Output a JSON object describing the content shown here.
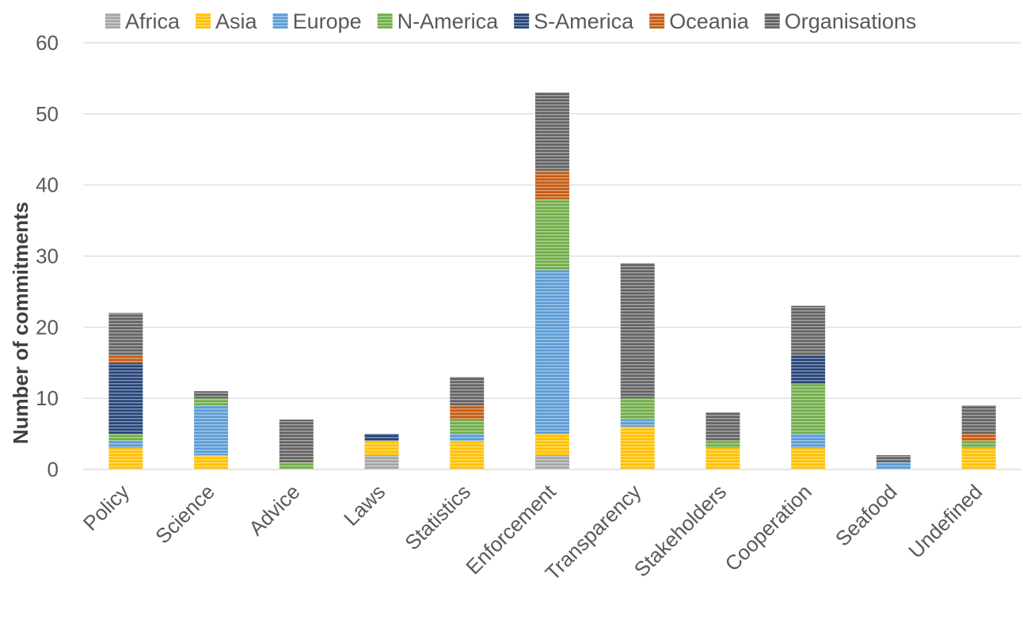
{
  "chart_data": {
    "type": "bar",
    "stacked": true,
    "ylabel": "Number of commitments",
    "xlabel": "",
    "ylim": [
      0,
      60
    ],
    "yticks": [
      0,
      10,
      20,
      30,
      40,
      50,
      60
    ],
    "grid": true,
    "legend_position": "top",
    "categories": [
      "Policy",
      "Science",
      "Advice",
      "Laws",
      "Statistics",
      "Enforcement",
      "Transparency",
      "Stakeholders",
      "Cooperation",
      "Seafood",
      "Undefined"
    ],
    "series": [
      {
        "name": "Africa",
        "color": "#a5a5a5",
        "values": [
          0,
          0,
          0,
          2,
          0,
          2,
          0,
          0,
          0,
          0,
          0
        ]
      },
      {
        "name": "Asia",
        "color": "#ffc000",
        "values": [
          3,
          2,
          0,
          2,
          4,
          3,
          6,
          3,
          3,
          0,
          3
        ]
      },
      {
        "name": "Europe",
        "color": "#5b9bd5",
        "values": [
          1,
          7,
          0,
          0,
          1,
          23,
          1,
          0,
          2,
          1,
          0
        ]
      },
      {
        "name": "N-America",
        "color": "#70ad47",
        "values": [
          1,
          1,
          1,
          0,
          2,
          10,
          3,
          1,
          7,
          0,
          1
        ]
      },
      {
        "name": "S-America",
        "color": "#264478",
        "values": [
          10,
          0,
          0,
          1,
          0,
          0,
          0,
          0,
          4,
          0,
          0
        ]
      },
      {
        "name": "Oceania",
        "color": "#c55a11",
        "values": [
          1,
          0,
          0,
          0,
          2,
          4,
          0,
          0,
          0,
          0,
          1
        ]
      },
      {
        "name": "Organisations",
        "color": "#636363",
        "values": [
          6,
          1,
          6,
          0,
          4,
          11,
          19,
          4,
          7,
          1,
          4
        ]
      }
    ]
  }
}
